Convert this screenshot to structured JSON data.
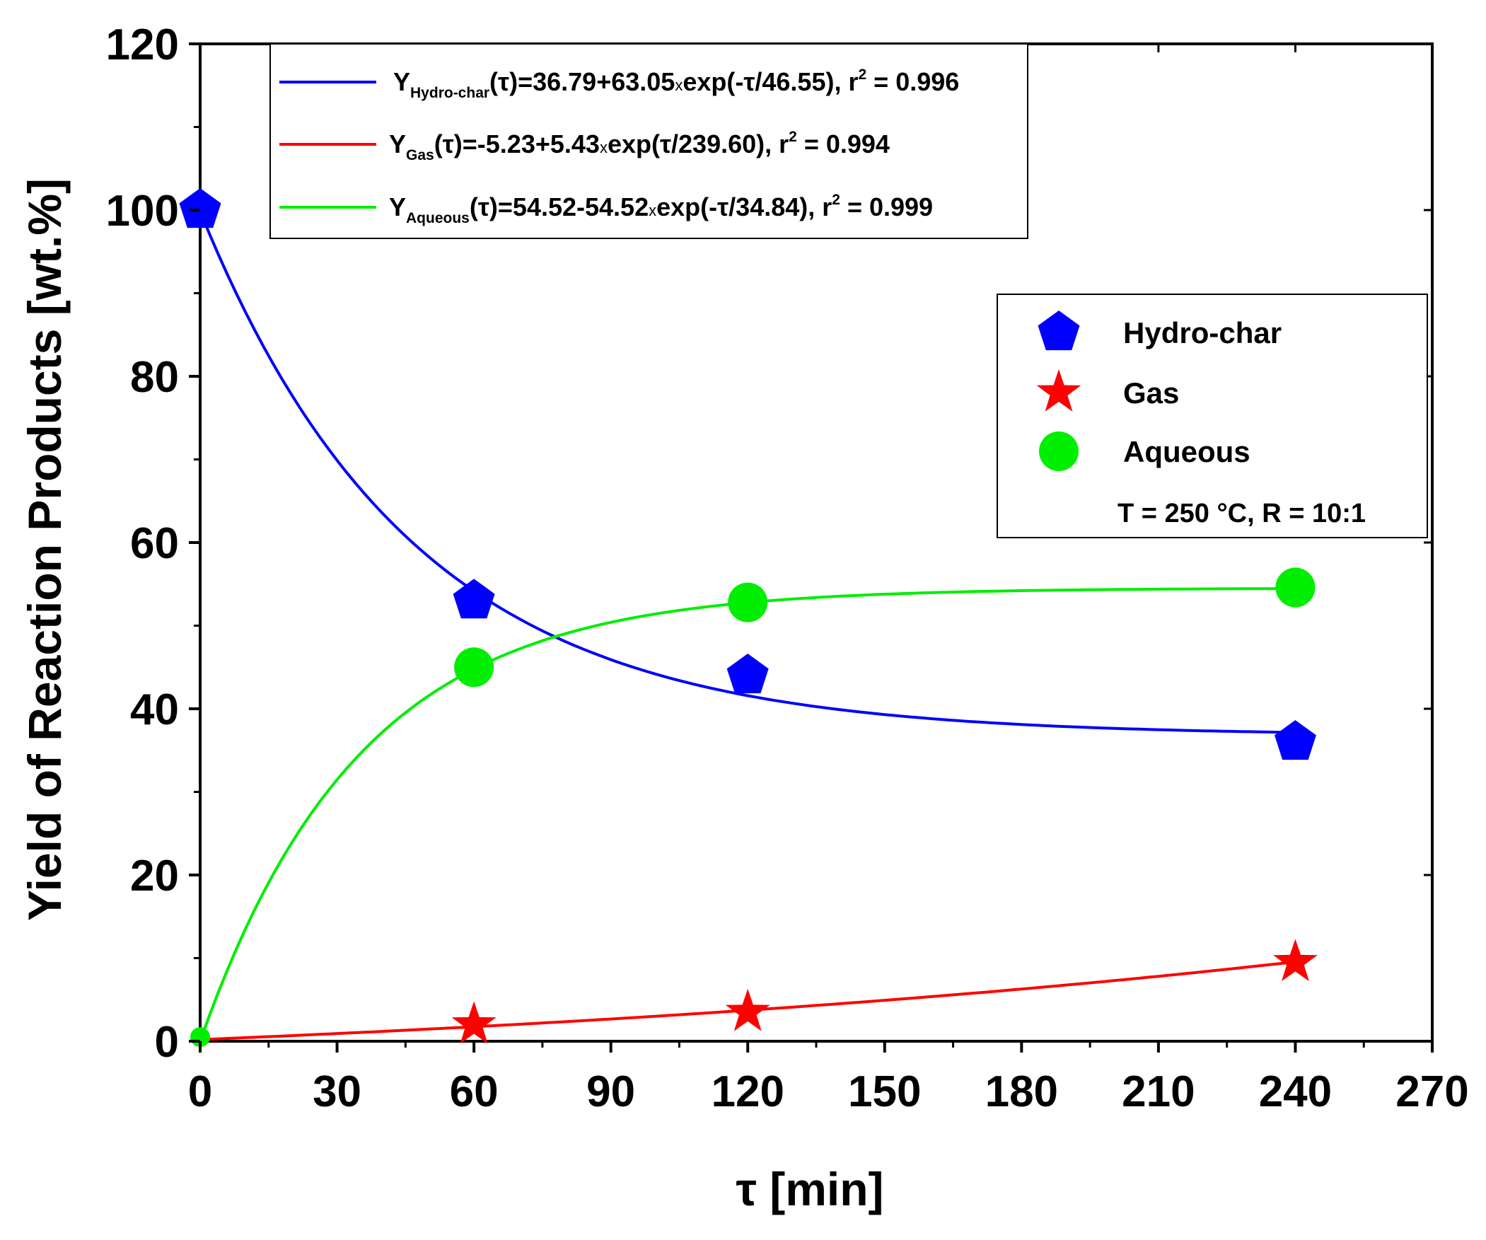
{
  "chart_data": {
    "type": "scatter",
    "title": "",
    "xlabel": "τ [min]",
    "ylabel": "Yield of Reaction Products [wt.%]",
    "xlim": [
      0,
      270
    ],
    "ylim": [
      0,
      120
    ],
    "x_ticks": [
      "0",
      "30",
      "60",
      "90",
      "120",
      "150",
      "180",
      "210",
      "240",
      "270"
    ],
    "y_ticks": [
      "0",
      "20",
      "40",
      "60",
      "80",
      "100",
      "120"
    ],
    "series": [
      {
        "name": "Hydro-char",
        "marker": "pentagon",
        "color": "#0000ff",
        "x": [
          0,
          60,
          120,
          240
        ],
        "y": [
          100,
          53,
          44,
          36
        ],
        "fit": {
          "model": "exp_decay",
          "a": 36.79,
          "b": 63.05,
          "tau": 46.55,
          "sign": -1
        },
        "fit_label": {
          "main": "Y",
          "sub": "Hydro-char",
          "mid": "(τ)=36.79+63.05",
          "times": "x",
          "tail": "exp(-τ/46.55), r",
          "sup": "2",
          "end": " = 0.996"
        }
      },
      {
        "name": "Gas",
        "marker": "star",
        "color": "#ff0000",
        "x": [
          60,
          120,
          240
        ],
        "y": [
          2,
          3.5,
          9.5
        ],
        "fit": {
          "model": "exp_growth",
          "a": -5.23,
          "b": 5.43,
          "tau": 239.6,
          "sign": 1
        },
        "fit_label": {
          "main": "Y",
          "sub": "Gas",
          "mid": "(τ)=-5.23+5.43",
          "times": "x",
          "tail": "exp(τ/239.60), r",
          "sup": "2",
          "end": " = 0.994"
        }
      },
      {
        "name": "Aqueous",
        "marker": "circle",
        "color": "#00ee00",
        "x": [
          0,
          60,
          120,
          240
        ],
        "y": [
          0.5,
          45,
          52.8,
          54.6
        ],
        "fit": {
          "model": "exp_rise",
          "a": 54.52,
          "b": -54.52,
          "tau": 34.84,
          "sign": -1
        },
        "fit_label": {
          "main": "Y",
          "sub": "Aqueous",
          "mid": "(τ)=54.52-54.52",
          "times": "x",
          "tail": "exp(-τ/34.84), r",
          "sup": "2",
          "end": " = 0.999"
        }
      }
    ],
    "legend_fits_position": "top-left",
    "legend_markers_position": "right",
    "annotation": "T = 250 °C, R = 10:1"
  }
}
